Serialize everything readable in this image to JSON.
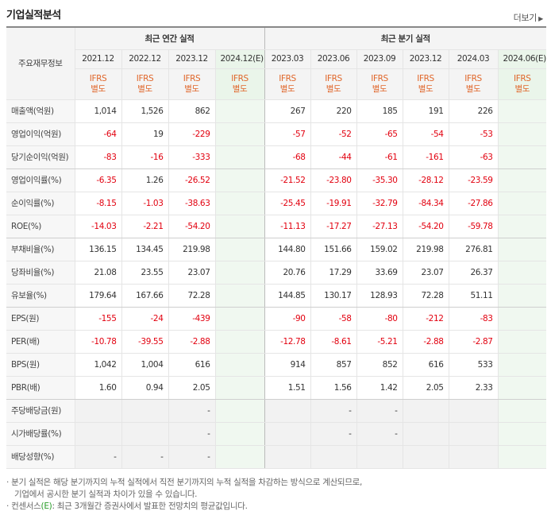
{
  "title": "기업실적분석",
  "more_label": "더보기",
  "corner_label": "주요재무정보",
  "annual_group_label": "최근 연간 실적",
  "quarter_group_label": "최근 분기 실적",
  "annual_periods": [
    "2021.12",
    "2022.12",
    "2023.12",
    "2024.12(E)"
  ],
  "quarter_periods": [
    "2023.03",
    "2023.06",
    "2023.09",
    "2023.12",
    "2024.03",
    "2024.06(E)"
  ],
  "ifrs_label": "IFRS",
  "ifrs_sub_label": "별도",
  "rows": [
    {
      "label": "매출액(억원)",
      "annual": [
        "1,014",
        "1,526",
        "862",
        ""
      ],
      "quarter": [
        "267",
        "220",
        "185",
        "191",
        "226",
        ""
      ]
    },
    {
      "label": "영업이익(억원)",
      "annual": [
        "-64",
        "19",
        "-229",
        ""
      ],
      "quarter": [
        "-57",
        "-52",
        "-65",
        "-54",
        "-53",
        ""
      ]
    },
    {
      "label": "당기순이익(억원)",
      "annual": [
        "-83",
        "-16",
        "-333",
        ""
      ],
      "quarter": [
        "-68",
        "-44",
        "-61",
        "-161",
        "-63",
        ""
      ]
    },
    {
      "label": "영업이익률(%)",
      "annual": [
        "-6.35",
        "1.26",
        "-26.52",
        ""
      ],
      "quarter": [
        "-21.52",
        "-23.80",
        "-35.30",
        "-28.12",
        "-23.59",
        ""
      ]
    },
    {
      "label": "순이익률(%)",
      "annual": [
        "-8.15",
        "-1.03",
        "-38.63",
        ""
      ],
      "quarter": [
        "-25.45",
        "-19.91",
        "-32.79",
        "-84.34",
        "-27.86",
        ""
      ]
    },
    {
      "label": "ROE(%)",
      "annual": [
        "-14.03",
        "-2.21",
        "-54.20",
        ""
      ],
      "quarter": [
        "-11.13",
        "-17.27",
        "-27.13",
        "-54.20",
        "-59.78",
        ""
      ]
    },
    {
      "label": "부채비율(%)",
      "annual": [
        "136.15",
        "134.45",
        "219.98",
        ""
      ],
      "quarter": [
        "144.80",
        "151.66",
        "159.02",
        "219.98",
        "276.81",
        ""
      ]
    },
    {
      "label": "당좌비율(%)",
      "annual": [
        "21.08",
        "23.55",
        "23.07",
        ""
      ],
      "quarter": [
        "20.76",
        "17.29",
        "33.69",
        "23.07",
        "26.37",
        ""
      ]
    },
    {
      "label": "유보율(%)",
      "annual": [
        "179.64",
        "167.66",
        "72.28",
        ""
      ],
      "quarter": [
        "144.85",
        "130.17",
        "128.93",
        "72.28",
        "51.11",
        ""
      ]
    },
    {
      "label": "EPS(원)",
      "annual": [
        "-155",
        "-24",
        "-439",
        ""
      ],
      "quarter": [
        "-90",
        "-58",
        "-80",
        "-212",
        "-83",
        ""
      ]
    },
    {
      "label": "PER(배)",
      "annual": [
        "-10.78",
        "-39.55",
        "-2.88",
        ""
      ],
      "quarter": [
        "-12.78",
        "-8.61",
        "-5.21",
        "-2.88",
        "-2.87",
        ""
      ]
    },
    {
      "label": "BPS(원)",
      "annual": [
        "1,042",
        "1,004",
        "616",
        ""
      ],
      "quarter": [
        "914",
        "857",
        "852",
        "616",
        "533",
        ""
      ]
    },
    {
      "label": "PBR(배)",
      "annual": [
        "1.60",
        "0.94",
        "2.05",
        ""
      ],
      "quarter": [
        "1.51",
        "1.56",
        "1.42",
        "2.05",
        "2.33",
        ""
      ]
    },
    {
      "label": "주당배당금(원)",
      "annual": [
        "",
        "",
        "-",
        ""
      ],
      "quarter": [
        "",
        "-",
        "-",
        "",
        "",
        ""
      ],
      "grey": true
    },
    {
      "label": "시가배당률(%)",
      "annual": [
        "",
        "",
        "-",
        ""
      ],
      "quarter": [
        "",
        "-",
        "-",
        "",
        "",
        ""
      ],
      "grey": true
    },
    {
      "label": "배당성향(%)",
      "annual": [
        "-",
        "-",
        "-",
        ""
      ],
      "quarter": [
        "",
        "",
        "",
        "",
        "",
        ""
      ],
      "grey": true
    }
  ],
  "note1_line1": "분기 실적은 해당 분기까지의 누적 실적에서 직전 분기까지의 누적 실적을 차감하는 방식으로 계산되므로,",
  "note1_line2": "기업에서 공시한 분기 실적과 차이가 있을 수 있습니다.",
  "note2_prefix": "컨센서스",
  "note2_e": "(E)",
  "note2_text": ": 최근 3개월간 증권사에서 발표한 전망치의 평균값입니다.",
  "colors": {
    "negative": "#e2000f",
    "ifrs": "#e0662a",
    "estimate_bg": "#eaf5ea",
    "estimate_mark": "#2a9d2a"
  }
}
